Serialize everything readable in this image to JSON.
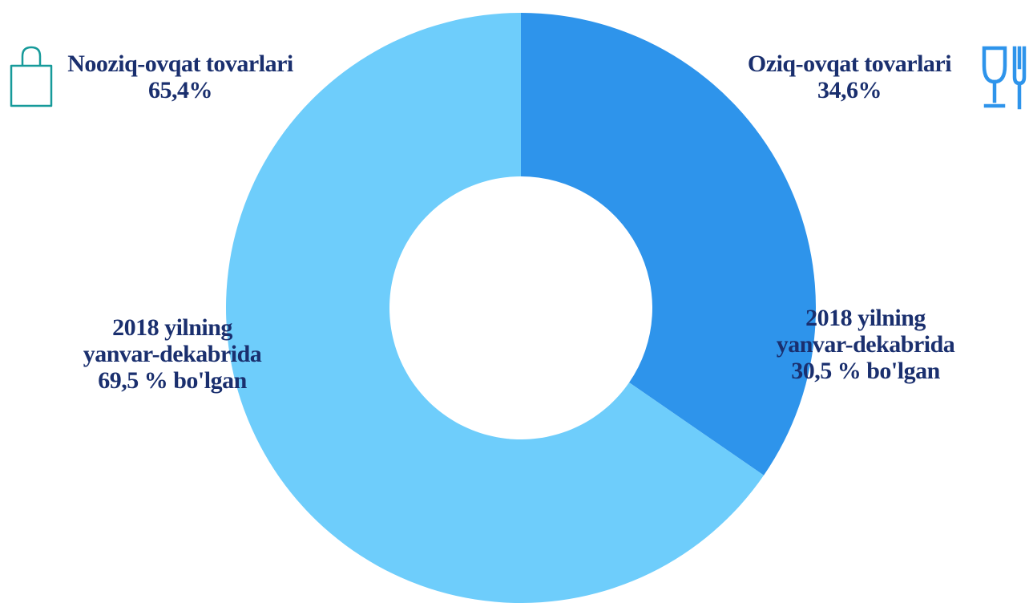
{
  "chart_data": {
    "type": "pie",
    "style": "donut",
    "categories": [
      "Oziq-ovqat tovarlari",
      "Nooziq-ovqat tovarlari"
    ],
    "values": [
      34.6,
      65.4
    ],
    "value_labels": [
      "34,6%",
      "65,4%"
    ],
    "colors": [
      "#2e94eb",
      "#6ecdfb"
    ],
    "annotations": [
      {
        "line1": "2018 yilning",
        "line2": "yanvar-dekabrida",
        "line3": "69,5 % bo'lgan"
      },
      {
        "line1": "2018 yilning",
        "line2": "yanvar-dekabrida",
        "line3": "30,5 % bo'lgan"
      }
    ]
  },
  "icons": {
    "left": "shopping-bag-icon",
    "right": "glass-and-cutlery-icon",
    "left_color": "#169a9a",
    "right_color": "#2e94eb"
  }
}
